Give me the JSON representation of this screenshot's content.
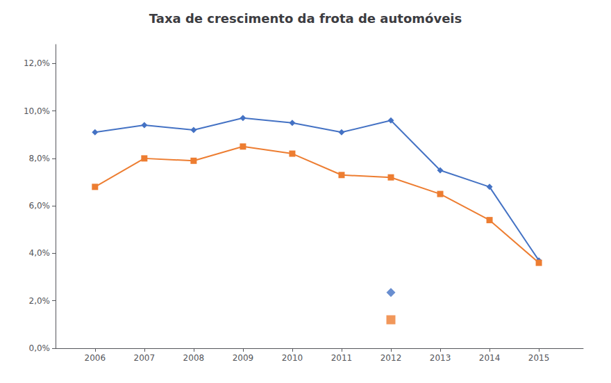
{
  "chart_data": {
    "type": "line",
    "title": "Taxa de crescimento da frota de automóveis",
    "x": [
      2006,
      2007,
      2008,
      2009,
      2010,
      2011,
      2012,
      2013,
      2014,
      2015
    ],
    "series": [
      {
        "type": "line",
        "color": "#4472C4",
        "marker": "diamond",
        "values": [
          0.091,
          0.094,
          0.092,
          0.097,
          0.095,
          0.091,
          0.096,
          0.075,
          0.068,
          0.037
        ]
      },
      {
        "type": "line",
        "color": "#ED7D31",
        "marker": "square",
        "values": [
          0.068,
          0.08,
          0.079,
          0.085,
          0.082,
          0.073,
          0.072,
          0.065,
          0.054,
          0.036
        ]
      },
      {
        "type": "scatter",
        "color": "#4472C4",
        "marker": "diamond",
        "x": [
          2012.0
        ],
        "values": [
          0.0235
        ]
      },
      {
        "type": "scatter",
        "color": "#ED7D31",
        "marker": "square",
        "x": [
          2012.0
        ],
        "values": [
          0.012
        ]
      }
    ],
    "xlim": [
      2005.2,
      2015.9
    ],
    "xticks": [
      2006,
      2007,
      2008,
      2009,
      2010,
      2011,
      2012,
      2013,
      2014,
      2015
    ],
    "ylim": [
      0.0,
      0.128
    ],
    "yticks": [
      {
        "value": 0.0,
        "label": "0,0%"
      },
      {
        "value": 0.02,
        "label": "2,0%"
      },
      {
        "value": 0.04,
        "label": "4,0%"
      },
      {
        "value": 0.06,
        "label": "6,0%"
      },
      {
        "value": 0.08,
        "label": "8,0%"
      },
      {
        "value": 0.1,
        "label": "10,0%"
      },
      {
        "value": 0.12,
        "label": "12,0%"
      }
    ],
    "grid": false
  }
}
